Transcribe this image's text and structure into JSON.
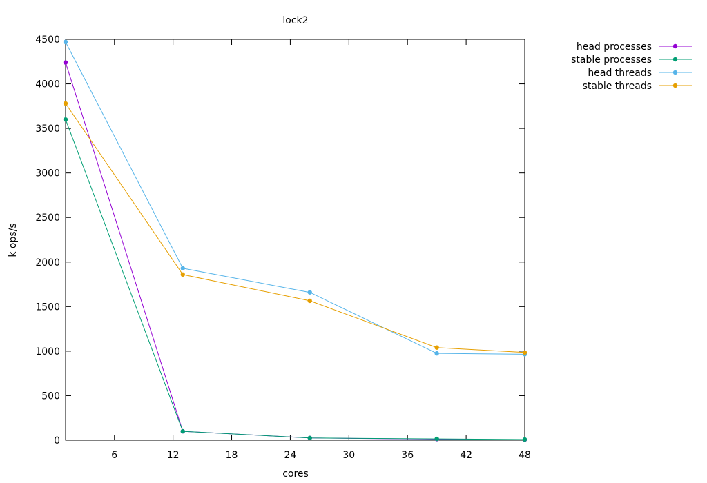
{
  "chart_data": {
    "type": "line",
    "title": "lock2",
    "xlabel": "cores",
    "ylabel": "k ops/s",
    "xlim": [
      1,
      48
    ],
    "ylim": [
      0,
      4500
    ],
    "xticks": [
      6,
      12,
      18,
      24,
      30,
      36,
      42,
      48
    ],
    "yticks": [
      0,
      500,
      1000,
      1500,
      2000,
      2500,
      3000,
      3500,
      4000,
      4500
    ],
    "grid": false,
    "legend_position": "outside-top-right",
    "series": [
      {
        "name": "head processes",
        "color": "#9400d3",
        "points": [
          [
            1,
            4240
          ],
          [
            13,
            100
          ],
          [
            26,
            25
          ],
          [
            39,
            12
          ],
          [
            48,
            6
          ]
        ]
      },
      {
        "name": "stable processes",
        "color": "#009e73",
        "points": [
          [
            1,
            3600
          ],
          [
            13,
            100
          ],
          [
            26,
            25
          ],
          [
            39,
            15
          ],
          [
            48,
            8
          ]
        ]
      },
      {
        "name": "head threads",
        "color": "#56b4e9",
        "points": [
          [
            1,
            4470
          ],
          [
            13,
            1930
          ],
          [
            26,
            1660
          ],
          [
            39,
            975
          ],
          [
            48,
            965
          ]
        ]
      },
      {
        "name": "stable threads",
        "color": "#e69f00",
        "points": [
          [
            1,
            3780
          ],
          [
            13,
            1860
          ],
          [
            26,
            1565
          ],
          [
            39,
            1040
          ],
          [
            48,
            985
          ]
        ]
      }
    ]
  }
}
